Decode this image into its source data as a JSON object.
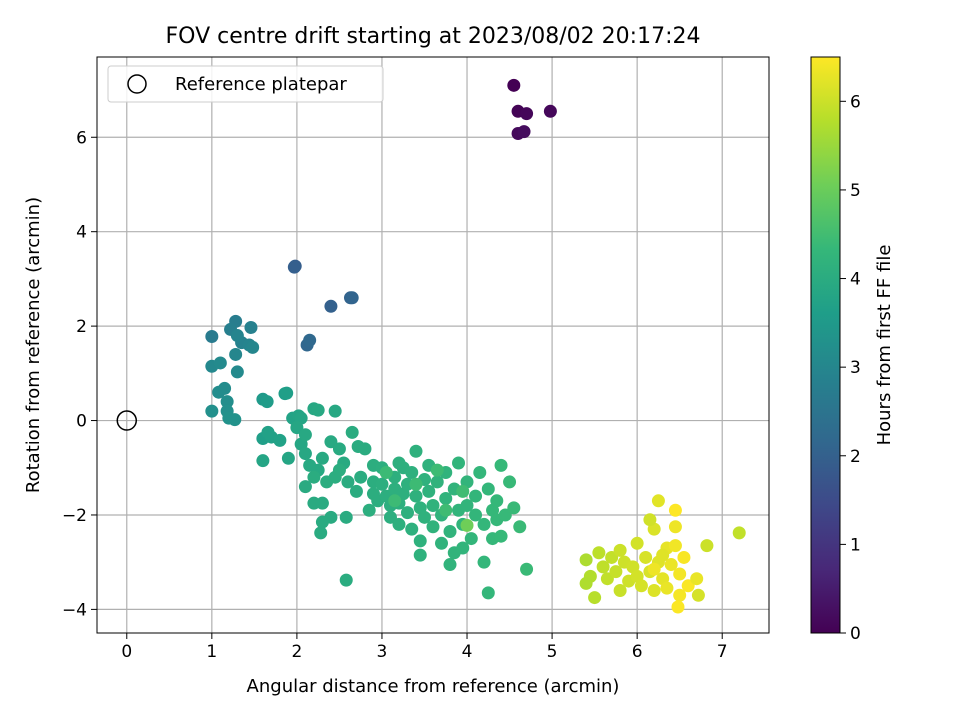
{
  "chart_data": {
    "type": "scatter",
    "title": "FOV centre drift starting at 2023/08/02 20:17:24",
    "xlabel": "Angular distance from reference (arcmin)",
    "ylabel": "Rotation from reference (arcmin)",
    "xlim": [
      -0.35,
      7.55
    ],
    "ylim": [
      -4.5,
      7.7
    ],
    "xticks": [
      0,
      1,
      2,
      3,
      4,
      5,
      6,
      7
    ],
    "yticks": [
      -4,
      -2,
      0,
      2,
      4,
      6
    ],
    "grid": true,
    "legend": {
      "position": "top-left",
      "entries": [
        "Reference platepar"
      ]
    },
    "reference_point": {
      "x": 0,
      "y": 0
    },
    "colorbar": {
      "label": "Hours from first FF file",
      "min": 0,
      "max": 6.5,
      "ticks": [
        0,
        1,
        2,
        3,
        4,
        5,
        6
      ],
      "colormap": "viridis",
      "stops": [
        "#440154",
        "#482878",
        "#3e4989",
        "#31688e",
        "#26828e",
        "#1f9e89",
        "#35b779",
        "#6ece58",
        "#b5de2b",
        "#fde725"
      ]
    },
    "series": [
      {
        "columns": [
          "x",
          "y",
          "hours"
        ],
        "points": [
          [
            4.55,
            7.1,
            0.0
          ],
          [
            4.6,
            6.55,
            0.05
          ],
          [
            4.7,
            6.5,
            0.1
          ],
          [
            4.98,
            6.55,
            0.12
          ],
          [
            4.6,
            6.08,
            0.15
          ],
          [
            4.67,
            6.12,
            0.2
          ],
          [
            1.98,
            3.27,
            1.9
          ],
          [
            1.97,
            3.25,
            1.95
          ],
          [
            2.4,
            2.42,
            2.0
          ],
          [
            2.63,
            2.6,
            2.05
          ],
          [
            2.65,
            2.6,
            2.1
          ],
          [
            2.12,
            1.6,
            2.15
          ],
          [
            2.15,
            1.7,
            2.2
          ],
          [
            1.0,
            1.78,
            2.7
          ],
          [
            1.28,
            2.1,
            2.75
          ],
          [
            1.22,
            1.93,
            2.8
          ],
          [
            1.46,
            1.97,
            2.85
          ],
          [
            1.35,
            1.65,
            2.9
          ],
          [
            1.44,
            1.6,
            2.95
          ],
          [
            1.48,
            1.55,
            3.0
          ],
          [
            1.28,
            1.4,
            3.0
          ],
          [
            1.3,
            1.8,
            2.95
          ],
          [
            1.0,
            1.15,
            3.05
          ],
          [
            1.1,
            1.22,
            3.1
          ],
          [
            1.3,
            1.03,
            3.1
          ],
          [
            1.08,
            0.6,
            3.15
          ],
          [
            1.15,
            0.68,
            3.15
          ],
          [
            1.18,
            0.4,
            3.2
          ],
          [
            1.0,
            0.2,
            3.25
          ],
          [
            1.18,
            0.2,
            3.25
          ],
          [
            1.2,
            0.05,
            3.3
          ],
          [
            1.27,
            0.02,
            3.3
          ],
          [
            1.6,
            0.45,
            3.5
          ],
          [
            1.65,
            0.4,
            3.55
          ],
          [
            1.86,
            0.57,
            3.6
          ],
          [
            1.88,
            0.58,
            3.65
          ],
          [
            1.6,
            -0.38,
            3.65
          ],
          [
            1.66,
            -0.25,
            3.7
          ],
          [
            1.7,
            -0.35,
            3.7
          ],
          [
            1.8,
            -0.42,
            3.72
          ],
          [
            1.95,
            0.05,
            3.75
          ],
          [
            2.02,
            0.1,
            3.78
          ],
          [
            2.05,
            0.05,
            3.8
          ],
          [
            1.6,
            -0.85,
            3.8
          ],
          [
            1.9,
            -0.8,
            3.82
          ],
          [
            2.0,
            -0.15,
            3.85
          ],
          [
            2.05,
            -0.5,
            3.85
          ],
          [
            2.1,
            -0.7,
            3.87
          ],
          [
            2.2,
            0.25,
            3.88
          ],
          [
            2.25,
            0.22,
            3.9
          ],
          [
            2.45,
            0.2,
            3.9
          ],
          [
            2.1,
            -0.3,
            3.9
          ],
          [
            2.15,
            -0.95,
            3.92
          ],
          [
            2.25,
            -1.05,
            3.92
          ],
          [
            2.3,
            -0.8,
            3.94
          ],
          [
            2.4,
            -0.45,
            3.94
          ],
          [
            2.5,
            -0.6,
            3.95
          ],
          [
            2.55,
            -0.9,
            3.95
          ],
          [
            2.1,
            -1.4,
            3.96
          ],
          [
            2.2,
            -1.75,
            3.96
          ],
          [
            2.3,
            -1.75,
            3.97
          ],
          [
            2.4,
            -2.05,
            3.97
          ],
          [
            2.3,
            -2.15,
            3.98
          ],
          [
            2.28,
            -2.38,
            3.98
          ],
          [
            2.58,
            -2.05,
            3.99
          ],
          [
            2.65,
            -0.25,
            4.0
          ],
          [
            2.72,
            -0.55,
            4.0
          ],
          [
            2.8,
            -0.6,
            4.0
          ],
          [
            2.6,
            -1.3,
            4.0
          ],
          [
            2.7,
            -1.5,
            4.02
          ],
          [
            2.75,
            -1.2,
            4.02
          ],
          [
            2.58,
            -3.38,
            4.02
          ],
          [
            2.2,
            -1.2,
            4.02
          ],
          [
            2.35,
            -1.3,
            4.03
          ],
          [
            2.45,
            -1.2,
            4.03
          ],
          [
            2.5,
            -1.05,
            4.03
          ],
          [
            2.9,
            -0.95,
            4.05
          ],
          [
            2.9,
            -1.3,
            4.05
          ],
          [
            2.9,
            -1.55,
            4.05
          ],
          [
            2.95,
            -1.7,
            4.05
          ],
          [
            2.85,
            -1.9,
            4.06
          ],
          [
            3.0,
            -1.0,
            4.06
          ],
          [
            3.0,
            -1.35,
            4.07
          ],
          [
            3.05,
            -1.6,
            4.07
          ],
          [
            3.1,
            -1.8,
            4.08
          ],
          [
            3.1,
            -2.05,
            4.08
          ],
          [
            3.15,
            -1.2,
            4.09
          ],
          [
            3.15,
            -1.45,
            4.09
          ],
          [
            3.2,
            -0.9,
            4.1
          ],
          [
            3.2,
            -1.75,
            4.1
          ],
          [
            3.2,
            -2.2,
            4.1
          ],
          [
            3.25,
            -1.0,
            4.11
          ],
          [
            3.25,
            -1.55,
            4.11
          ],
          [
            3.3,
            -1.35,
            4.12
          ],
          [
            3.3,
            -1.95,
            4.12
          ],
          [
            3.35,
            -2.3,
            4.13
          ],
          [
            3.35,
            -1.1,
            4.13
          ],
          [
            3.4,
            -1.6,
            4.14
          ],
          [
            3.4,
            -0.65,
            4.14
          ],
          [
            3.45,
            -1.85,
            4.15
          ],
          [
            3.45,
            -2.55,
            4.15
          ],
          [
            3.45,
            -2.85,
            4.15
          ],
          [
            3.5,
            -1.25,
            4.16
          ],
          [
            3.5,
            -2.05,
            4.16
          ],
          [
            3.55,
            -1.5,
            4.17
          ],
          [
            3.55,
            -0.95,
            4.17
          ],
          [
            3.6,
            -1.8,
            4.18
          ],
          [
            3.6,
            -2.25,
            4.18
          ],
          [
            3.65,
            -1.3,
            4.19
          ],
          [
            3.7,
            -2.0,
            4.2
          ],
          [
            3.7,
            -2.6,
            4.2
          ],
          [
            3.75,
            -1.1,
            4.21
          ],
          [
            3.75,
            -1.65,
            4.21
          ],
          [
            3.8,
            -2.35,
            4.22
          ],
          [
            3.8,
            -3.05,
            4.22
          ],
          [
            3.85,
            -1.45,
            4.23
          ],
          [
            3.85,
            -2.8,
            4.23
          ],
          [
            3.9,
            -0.9,
            4.24
          ],
          [
            3.9,
            -1.9,
            4.24
          ],
          [
            3.95,
            -2.2,
            4.25
          ],
          [
            3.95,
            -2.7,
            4.25
          ],
          [
            4.0,
            -1.3,
            4.26
          ],
          [
            4.0,
            -1.8,
            4.26
          ],
          [
            4.05,
            -2.5,
            4.27
          ],
          [
            4.1,
            -1.6,
            4.28
          ],
          [
            4.1,
            -2.0,
            4.28
          ],
          [
            4.15,
            -1.1,
            4.29
          ],
          [
            4.2,
            -2.2,
            4.3
          ],
          [
            4.2,
            -3.0,
            4.3
          ],
          [
            4.25,
            -1.45,
            4.31
          ],
          [
            4.25,
            -3.65,
            4.31
          ],
          [
            4.3,
            -1.9,
            4.32
          ],
          [
            4.3,
            -2.5,
            4.32
          ],
          [
            4.35,
            -1.7,
            4.33
          ],
          [
            4.35,
            -2.1,
            4.34
          ],
          [
            4.4,
            -2.45,
            4.35
          ],
          [
            4.4,
            -0.95,
            4.35
          ],
          [
            4.45,
            -2.0,
            4.36
          ],
          [
            4.5,
            -1.3,
            4.37
          ],
          [
            4.55,
            -1.85,
            4.38
          ],
          [
            4.62,
            -2.25,
            4.4
          ],
          [
            4.7,
            -3.15,
            4.4
          ],
          [
            3.05,
            -1.1,
            4.42
          ],
          [
            3.15,
            -1.7,
            4.43
          ],
          [
            3.4,
            -1.35,
            4.44
          ],
          [
            3.65,
            -1.05,
            4.45
          ],
          [
            3.75,
            -1.9,
            4.46
          ],
          [
            3.95,
            -1.5,
            4.47
          ],
          [
            4.0,
            -2.22,
            5.05
          ],
          [
            5.4,
            -2.95,
            5.7
          ],
          [
            5.45,
            -3.3,
            5.75
          ],
          [
            5.5,
            -3.75,
            5.8
          ],
          [
            5.55,
            -2.8,
            5.85
          ],
          [
            5.6,
            -3.1,
            5.88
          ],
          [
            5.65,
            -3.35,
            5.9
          ],
          [
            5.7,
            -2.9,
            5.92
          ],
          [
            5.75,
            -3.2,
            5.95
          ],
          [
            5.8,
            -3.6,
            5.97
          ],
          [
            5.8,
            -2.75,
            6.0
          ],
          [
            5.85,
            -3.0,
            6.02
          ],
          [
            5.9,
            -3.4,
            6.03
          ],
          [
            5.95,
            -3.1,
            6.05
          ],
          [
            6.0,
            -2.6,
            6.07
          ],
          [
            6.0,
            -3.3,
            6.08
          ],
          [
            6.05,
            -3.5,
            6.1
          ],
          [
            6.1,
            -2.9,
            6.12
          ],
          [
            6.15,
            -3.2,
            6.13
          ],
          [
            6.2,
            -2.3,
            6.15
          ],
          [
            6.2,
            -3.6,
            6.17
          ],
          [
            6.25,
            -3.0,
            6.2
          ],
          [
            6.25,
            -1.7,
            6.22
          ],
          [
            6.3,
            -3.35,
            6.25
          ],
          [
            6.35,
            -2.7,
            6.28
          ],
          [
            6.35,
            -3.55,
            6.3
          ],
          [
            6.4,
            -3.05,
            6.32
          ],
          [
            6.45,
            -2.25,
            6.35
          ],
          [
            6.45,
            -2.65,
            6.38
          ],
          [
            6.5,
            -3.25,
            6.4
          ],
          [
            6.5,
            -3.7,
            6.42
          ],
          [
            6.55,
            -2.9,
            6.45
          ],
          [
            6.6,
            -3.5,
            6.47
          ],
          [
            6.7,
            -3.35,
            6.3
          ],
          [
            6.72,
            -3.7,
            6.1
          ],
          [
            6.82,
            -2.65,
            6.0
          ],
          [
            7.2,
            -2.38,
            5.9
          ],
          [
            6.45,
            -1.9,
            6.5
          ],
          [
            6.48,
            -3.95,
            6.48
          ],
          [
            6.15,
            -2.1,
            6.05
          ],
          [
            6.3,
            -2.85,
            6.2
          ],
          [
            6.2,
            -3.15,
            6.35
          ],
          [
            5.4,
            -3.45,
            5.72
          ]
        ]
      }
    ]
  }
}
